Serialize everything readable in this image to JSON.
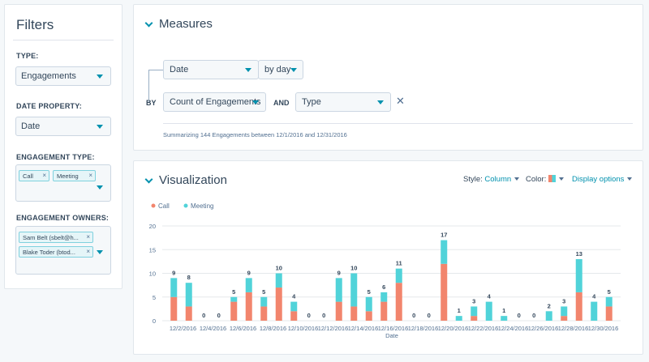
{
  "filters": {
    "title": "Filters",
    "type_label": "TYPE:",
    "type_value": "Engagements",
    "date_property_label": "DATE PROPERTY:",
    "date_property_value": "Date",
    "engagement_type_label": "ENGAGEMENT TYPE:",
    "engagement_type_tags": [
      "Call",
      "Meeting"
    ],
    "engagement_owners_label": "ENGAGEMENT OWNERS:",
    "engagement_owner_tags": [
      "Sam Belt (sbelt@h...",
      "Blake Toder (btod..."
    ]
  },
  "measures": {
    "title": "Measures",
    "date_select": "Date",
    "frequency_select": "by day",
    "by_label": "BY",
    "count_select": "Count of Engagements",
    "and_label": "AND",
    "type_select": "Type",
    "summary": "Summarizing 144 Engagements between 12/1/2016 and 12/31/2016"
  },
  "visualization": {
    "title": "Visualization",
    "style_label": "Style:",
    "style_value": "Column",
    "color_label": "Color:",
    "display_options": "Display options"
  },
  "colors": {
    "call": "#f2856d",
    "meeting": "#51d3d9",
    "accent": "#0091ae"
  },
  "chart_data": {
    "type": "bar",
    "stacked": true,
    "xlabel": "Date",
    "ylabel": "",
    "ylim": [
      0,
      20
    ],
    "yticks": [
      0,
      5,
      10,
      15,
      20
    ],
    "legend": [
      "Call",
      "Meeting"
    ],
    "legend_position": "top-left",
    "categories": [
      "12/1/2016",
      "12/2/2016",
      "12/3/2016",
      "12/4/2016",
      "12/5/2016",
      "12/6/2016",
      "12/7/2016",
      "12/8/2016",
      "12/9/2016",
      "12/10/2016",
      "12/11/2016",
      "12/12/2016",
      "12/13/2016",
      "12/14/2016",
      "12/15/2016",
      "12/16/2016",
      "12/17/2016",
      "12/18/2016",
      "12/19/2016",
      "12/20/2016",
      "12/21/2016",
      "12/22/2016",
      "12/23/2016",
      "12/24/2016",
      "12/25/2016",
      "12/26/2016",
      "12/27/2016",
      "12/28/2016",
      "12/29/2016",
      "12/30/2016"
    ],
    "tick_labels": [
      "12/2/2016",
      "12/4/2016",
      "12/6/2016",
      "12/8/2016",
      "12/10/2016",
      "12/12/2016",
      "12/14/2016",
      "12/16/2016",
      "12/18/2016",
      "12/20/2016",
      "12/22/2016",
      "12/24/2016",
      "12/26/2016",
      "12/28/2016",
      "12/30/2016"
    ],
    "totals": [
      9,
      8,
      0,
      0,
      5,
      9,
      5,
      10,
      4,
      0,
      0,
      9,
      10,
      5,
      6,
      11,
      0,
      0,
      17,
      1,
      3,
      4,
      1,
      0,
      0,
      2,
      3,
      13,
      4,
      5
    ],
    "series": [
      {
        "name": "Call",
        "values": [
          5,
          3,
          0,
          0,
          4,
          6,
          3,
          7,
          2,
          0,
          0,
          4,
          3,
          2,
          4,
          8,
          0,
          0,
          12,
          0,
          1,
          0,
          0,
          0,
          0,
          0,
          1,
          6,
          0,
          3
        ]
      },
      {
        "name": "Meeting",
        "values": [
          4,
          5,
          0,
          0,
          1,
          3,
          2,
          3,
          2,
          0,
          0,
          5,
          7,
          3,
          2,
          3,
          0,
          0,
          5,
          1,
          2,
          4,
          1,
          0,
          0,
          2,
          2,
          7,
          4,
          2
        ]
      }
    ]
  }
}
